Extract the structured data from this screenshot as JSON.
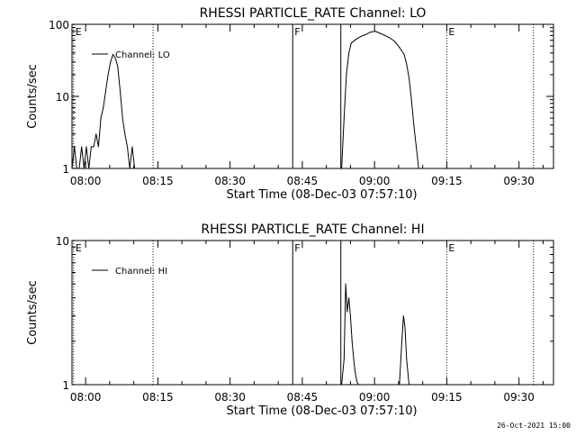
{
  "footer": {
    "timestamp": "26-Oct-2021 15:00"
  },
  "chart_data": [
    {
      "type": "line",
      "title": "RHESSI PARTICLE_RATE Channel: LO",
      "xlabel": "Start Time (08-Dec-03 07:57:10)",
      "ylabel": "Counts/sec",
      "yscale": "log",
      "ylim": [
        1,
        100
      ],
      "y_ticks": [
        "1",
        "10",
        "100"
      ],
      "xlim": [
        "07:57:10",
        "09:37:10"
      ],
      "x_ticks": [
        "08:00",
        "08:15",
        "08:30",
        "08:45",
        "09:00",
        "09:15",
        "09:30"
      ],
      "legend": "top-left",
      "series": [
        {
          "name": "Channel: LO",
          "x": [
            "07:57:10",
            "07:57:40",
            "07:58:10",
            "07:58:40",
            "07:59:10",
            "07:59:40",
            "08:00:10",
            "08:00:40",
            "08:01:10",
            "08:01:40",
            "08:02:10",
            "08:02:40",
            "08:03:10",
            "08:03:40",
            "08:04:10",
            "08:04:40",
            "08:05:10",
            "08:05:40",
            "08:06:10",
            "08:06:40",
            "08:07:10",
            "08:07:40",
            "08:08:10",
            "08:08:40",
            "08:09:10",
            "08:09:40",
            "08:10:10",
            "08:10:40",
            "08:53:10",
            "08:53:40",
            "08:54:10",
            "08:54:40",
            "08:55:10",
            "08:56:10",
            "08:57:10",
            "08:58:10",
            "08:59:10",
            "09:00:10",
            "09:01:10",
            "09:02:10",
            "09:03:10",
            "09:04:10",
            "09:05:10",
            "09:06:10",
            "09:06:40",
            "09:07:10",
            "09:07:40",
            "09:08:10",
            "09:08:40",
            "09:09:10"
          ],
          "values": [
            1,
            2,
            1,
            1,
            2,
            1,
            2,
            1,
            2,
            2,
            3,
            2,
            5,
            7,
            12,
            20,
            30,
            38,
            34,
            26,
            12,
            5,
            3,
            2,
            1,
            2,
            1,
            1,
            1,
            5,
            20,
            40,
            55,
            62,
            68,
            72,
            78,
            80,
            75,
            70,
            65,
            58,
            48,
            38,
            28,
            18,
            9,
            4,
            2,
            1
          ]
        }
      ],
      "markers": [
        {
          "label": "E",
          "t": "07:57:30",
          "style": "dotted-end"
        },
        {
          "label": "",
          "t": "08:14:00",
          "style": "dotted"
        },
        {
          "label": "F",
          "t": "08:43:00",
          "style": "solid"
        },
        {
          "label": "",
          "t": "08:53:00",
          "style": "solid"
        },
        {
          "label": "E",
          "t": "09:15:00",
          "style": "dotted"
        },
        {
          "label": "",
          "t": "09:33:00",
          "style": "dotted"
        }
      ]
    },
    {
      "type": "line",
      "title": "RHESSI PARTICLE_RATE Channel: HI",
      "xlabel": "Start Time (08-Dec-03 07:57:10)",
      "ylabel": "Counts/sec",
      "yscale": "log",
      "ylim": [
        1,
        10
      ],
      "y_ticks": [
        "1",
        "10"
      ],
      "xlim": [
        "07:57:10",
        "09:37:10"
      ],
      "x_ticks": [
        "08:00",
        "08:15",
        "08:30",
        "08:45",
        "09:00",
        "09:15",
        "09:30"
      ],
      "legend": "top-left",
      "series": [
        {
          "name": "Channel: HI",
          "x": [
            "08:53:10",
            "08:53:40",
            "08:54:00",
            "08:54:20",
            "08:54:40",
            "08:55:00",
            "08:55:20",
            "08:55:40",
            "08:56:00",
            "08:56:20",
            "08:56:40",
            "09:05:10",
            "09:05:40",
            "09:06:00",
            "09:06:20",
            "09:06:40",
            "09:07:10"
          ],
          "values": [
            1,
            1.5,
            5,
            3.2,
            4,
            3,
            2,
            1.5,
            1.2,
            1.05,
            1,
            1,
            2,
            3,
            2.5,
            1.5,
            1
          ]
        }
      ],
      "markers": [
        {
          "label": "E",
          "t": "07:57:30",
          "style": "dotted-end"
        },
        {
          "label": "",
          "t": "08:14:00",
          "style": "dotted"
        },
        {
          "label": "F",
          "t": "08:43:00",
          "style": "solid"
        },
        {
          "label": "",
          "t": "08:53:00",
          "style": "solid"
        },
        {
          "label": "E",
          "t": "09:15:00",
          "style": "dotted"
        },
        {
          "label": "",
          "t": "09:33:00",
          "style": "dotted"
        }
      ]
    }
  ]
}
